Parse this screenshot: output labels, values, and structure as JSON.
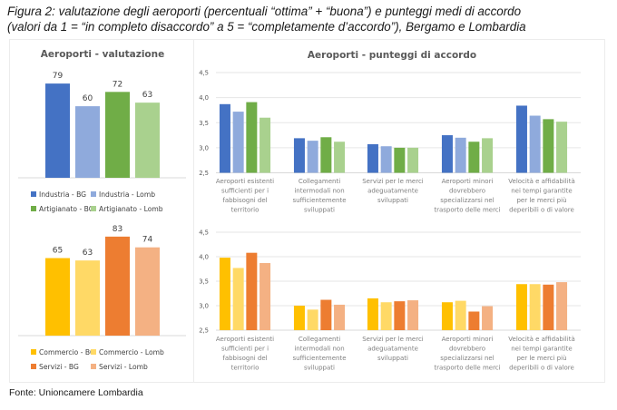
{
  "figure": {
    "title_line1": "Figura 2: valutazione degli aeroporti (percentuali “ottima” + “buona”) e punteggi medi di accordo",
    "title_line2": "(valori da 1 = “in completo disaccordo” a 5 = “completamente d’accordo”), Bergamo e Lombardia",
    "source": "Fonte: Unioncamere Lombardia"
  },
  "chart_data": [
    {
      "id": "valutazione-industria-artigianato",
      "type": "bar",
      "title": "Aeroporti - valutazione",
      "categories": [
        ""
      ],
      "series": [
        {
          "name": "Industria - BG",
          "values": [
            79
          ],
          "color": "#4472C4"
        },
        {
          "name": "Industria - Lomb",
          "values": [
            60
          ],
          "color": "#8FAADC"
        },
        {
          "name": "Artigianato - BG",
          "values": [
            72
          ],
          "color": "#70AD47"
        },
        {
          "name": "Artigianato - Lomb",
          "values": [
            63
          ],
          "color": "#A9D18E"
        }
      ],
      "data_labels": true,
      "ylim": [
        0,
        100
      ],
      "grid": false,
      "legend": "bottom"
    },
    {
      "id": "valutazione-commercio-servizi",
      "type": "bar",
      "title": "",
      "categories": [
        ""
      ],
      "series": [
        {
          "name": "Commercio - BG",
          "values": [
            65
          ],
          "color": "#FFC000"
        },
        {
          "name": "Commercio - Lomb",
          "values": [
            63
          ],
          "color": "#FFD966"
        },
        {
          "name": "Servizi - BG",
          "values": [
            83
          ],
          "color": "#ED7D31"
        },
        {
          "name": "Servizi - Lomb",
          "values": [
            74
          ],
          "color": "#F4B183"
        }
      ],
      "data_labels": true,
      "ylim": [
        0,
        100
      ],
      "grid": false,
      "legend": "bottom"
    },
    {
      "id": "punteggi-industria-artigianato",
      "type": "bar",
      "title": "Aeroporti - punteggi di accordo",
      "categories": [
        "Aeroporti esistenti sufficienti per i fabbisogni del territorio",
        "Collegamenti intermodali non sufficientemente sviluppati",
        "Servizi per le merci adeguatamente sviluppati",
        "Aeroporti minori dovrebbero specializzarsi nel trasporto delle merci",
        "Velocità e affidabilità nei tempi garantite per le merci più deperibili o di valore"
      ],
      "category_lines": [
        [
          "Aeroporti esistenti",
          "sufficienti per i",
          "fabbisogni del",
          "territorio"
        ],
        [
          "Collegamenti",
          "intermodali non",
          "sufficientemente",
          "sviluppati"
        ],
        [
          "Servizi per le merci",
          "adeguatamente",
          "sviluppati"
        ],
        [
          "Aeroporti minori",
          "dovrebbero",
          "specializzarsi nel",
          "trasporto delle merci"
        ],
        [
          "Velocità e affidabilità",
          "nei tempi garantite",
          "per le merci più",
          "deperibili o di valore"
        ]
      ],
      "series": [
        {
          "name": "Industria - BG",
          "values": [
            3.87,
            3.19,
            3.07,
            3.25,
            3.84
          ],
          "color": "#4472C4"
        },
        {
          "name": "Industria - Lomb",
          "values": [
            3.72,
            3.14,
            3.03,
            3.2,
            3.64
          ],
          "color": "#8FAADC"
        },
        {
          "name": "Artigianato - BG",
          "values": [
            3.91,
            3.21,
            3.0,
            3.12,
            3.57
          ],
          "color": "#70AD47"
        },
        {
          "name": "Artigianato - Lomb",
          "values": [
            3.6,
            3.12,
            3.0,
            3.19,
            3.52
          ],
          "color": "#A9D18E"
        }
      ],
      "ylim": [
        2.5,
        4.5
      ],
      "yticks": [
        "2,5",
        "3,0",
        "3,5",
        "4,0",
        "4,5"
      ],
      "ytick_values": [
        2.5,
        3.0,
        3.5,
        4.0,
        4.5
      ],
      "grid": true,
      "legend": "none"
    },
    {
      "id": "punteggi-commercio-servizi",
      "type": "bar",
      "title": "",
      "categories": [
        "Aeroporti esistenti sufficienti per i fabbisogni del territorio",
        "Collegamenti intermodali non sufficientemente sviluppati",
        "Servizi per le merci adeguatamente sviluppati",
        "Aeroporti minori dovrebbero specializzarsi nel trasporto delle merci",
        "Velocità e affidabilità nei tempi garantite per le merci più deperibili o di valore"
      ],
      "category_lines": [
        [
          "Aeroporti esistenti",
          "sufficienti per i",
          "fabbisogni del",
          "territorio"
        ],
        [
          "Collegamenti",
          "intermodali non",
          "sufficientemente",
          "sviluppati"
        ],
        [
          "Servizi per le merci",
          "adeguatamente",
          "sviluppati"
        ],
        [
          "Aeroporti minori",
          "dovrebbero",
          "specializzarsi nel",
          "trasporto delle merci"
        ],
        [
          "Velocità e affidabilità",
          "nei tempi garantite",
          "per le merci più",
          "deperibili o di valore"
        ]
      ],
      "series": [
        {
          "name": "Commercio - BG",
          "values": [
            3.98,
            3.0,
            3.15,
            3.07,
            3.44
          ],
          "color": "#FFC000"
        },
        {
          "name": "Commercio - Lomb",
          "values": [
            3.77,
            2.92,
            3.07,
            3.1,
            3.44
          ],
          "color": "#FFD966"
        },
        {
          "name": "Servizi - BG",
          "values": [
            4.08,
            3.12,
            3.09,
            2.88,
            3.43
          ],
          "color": "#ED7D31"
        },
        {
          "name": "Servizi - Lomb",
          "values": [
            3.87,
            3.02,
            3.11,
            2.99,
            3.48
          ],
          "color": "#F4B183"
        }
      ],
      "ylim": [
        2.5,
        4.5
      ],
      "yticks": [
        "2,5",
        "3,0",
        "3,5",
        "4,0",
        "4,5"
      ],
      "ytick_values": [
        2.5,
        3.0,
        3.5,
        4.0,
        4.5
      ],
      "grid": true,
      "legend": "none"
    }
  ]
}
